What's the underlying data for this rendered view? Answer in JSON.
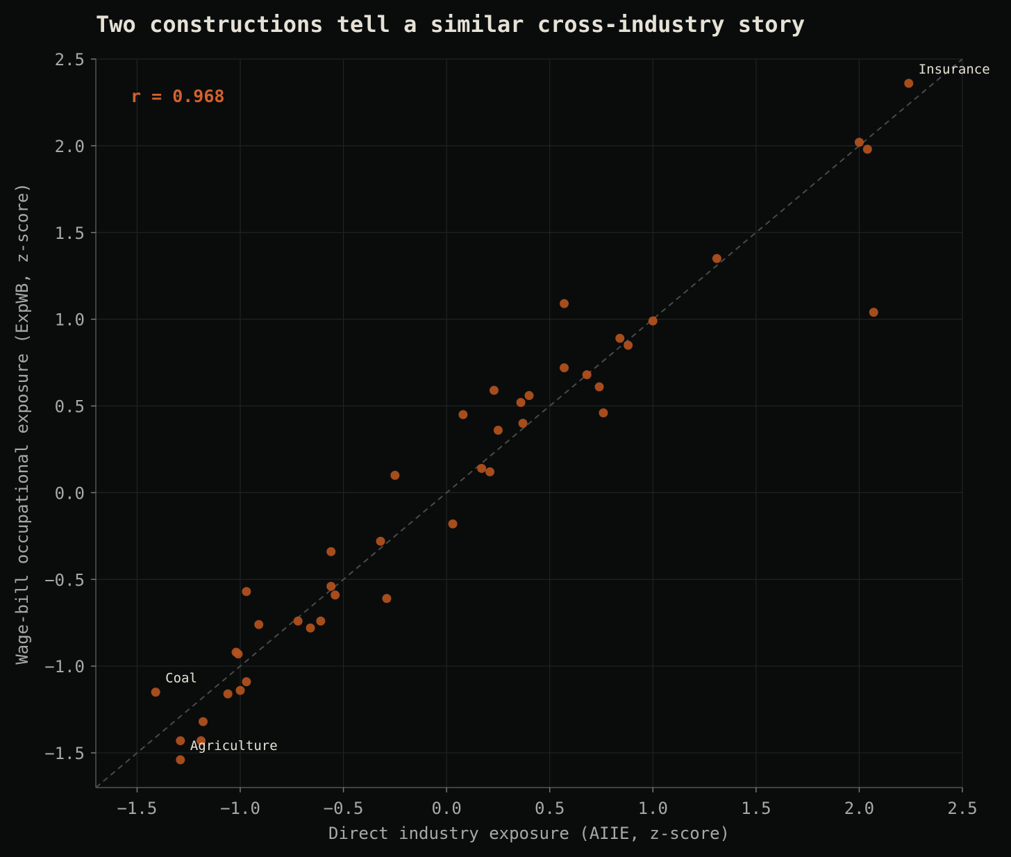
{
  "chart_data": {
    "type": "scatter",
    "title": "Two constructions tell a similar cross-industry story",
    "xlabel": "Direct industry exposure (AIIE, z-score)",
    "ylabel": "Wage-bill occupational exposure (ExpWB, z-score)",
    "xlim": [
      -1.7,
      2.5
    ],
    "ylim": [
      -1.7,
      2.5
    ],
    "xticks": [
      "−1.5",
      "−1.0",
      "−0.5",
      "0.0",
      "0.5",
      "1.0",
      "1.5",
      "2.0",
      "2.5"
    ],
    "xtick_values": [
      -1.5,
      -1.0,
      -0.5,
      0.0,
      0.5,
      1.0,
      1.5,
      2.0,
      2.5
    ],
    "yticks": [
      "−1.5",
      "−1.0",
      "−0.5",
      "0.0",
      "0.5",
      "1.0",
      "1.5",
      "2.0",
      "2.5"
    ],
    "ytick_values": [
      -1.5,
      -1.0,
      -0.5,
      0.0,
      0.5,
      1.0,
      1.5,
      2.0,
      2.5
    ],
    "grid": true,
    "reference_line": "y = x",
    "correlation_label": "r = 0.968",
    "point_color": "#b4531f",
    "accent_color": "#d4612d",
    "points": [
      {
        "x": 2.24,
        "y": 2.36,
        "label": "Insurance"
      },
      {
        "x": 2.0,
        "y": 2.02
      },
      {
        "x": 2.04,
        "y": 1.98
      },
      {
        "x": 2.07,
        "y": 1.04
      },
      {
        "x": 1.31,
        "y": 1.35
      },
      {
        "x": 1.0,
        "y": 0.99
      },
      {
        "x": 0.57,
        "y": 1.09
      },
      {
        "x": 0.84,
        "y": 0.89
      },
      {
        "x": 0.88,
        "y": 0.85
      },
      {
        "x": 0.57,
        "y": 0.72
      },
      {
        "x": 0.68,
        "y": 0.68
      },
      {
        "x": 0.74,
        "y": 0.61
      },
      {
        "x": 0.76,
        "y": 0.46
      },
      {
        "x": 0.23,
        "y": 0.59
      },
      {
        "x": 0.4,
        "y": 0.56
      },
      {
        "x": 0.36,
        "y": 0.52
      },
      {
        "x": 0.08,
        "y": 0.45
      },
      {
        "x": 0.37,
        "y": 0.4
      },
      {
        "x": 0.25,
        "y": 0.36
      },
      {
        "x": 0.17,
        "y": 0.14
      },
      {
        "x": 0.21,
        "y": 0.12
      },
      {
        "x": -0.25,
        "y": 0.1
      },
      {
        "x": 0.03,
        "y": -0.18
      },
      {
        "x": -0.32,
        "y": -0.28
      },
      {
        "x": -0.56,
        "y": -0.34
      },
      {
        "x": -0.56,
        "y": -0.54
      },
      {
        "x": -0.54,
        "y": -0.59
      },
      {
        "x": -0.29,
        "y": -0.61
      },
      {
        "x": -0.97,
        "y": -0.57
      },
      {
        "x": -0.61,
        "y": -0.74
      },
      {
        "x": -0.72,
        "y": -0.74
      },
      {
        "x": -0.66,
        "y": -0.78
      },
      {
        "x": -0.91,
        "y": -0.76
      },
      {
        "x": -1.02,
        "y": -0.92
      },
      {
        "x": -1.01,
        "y": -0.93
      },
      {
        "x": -0.97,
        "y": -1.09
      },
      {
        "x": -1.0,
        "y": -1.14
      },
      {
        "x": -1.06,
        "y": -1.16
      },
      {
        "x": -1.41,
        "y": -1.15,
        "label": "Coal"
      },
      {
        "x": -1.18,
        "y": -1.32
      },
      {
        "x": -1.29,
        "y": -1.43
      },
      {
        "x": -1.19,
        "y": -1.43
      },
      {
        "x": -1.29,
        "y": -1.54,
        "label": "Agriculture"
      }
    ]
  }
}
